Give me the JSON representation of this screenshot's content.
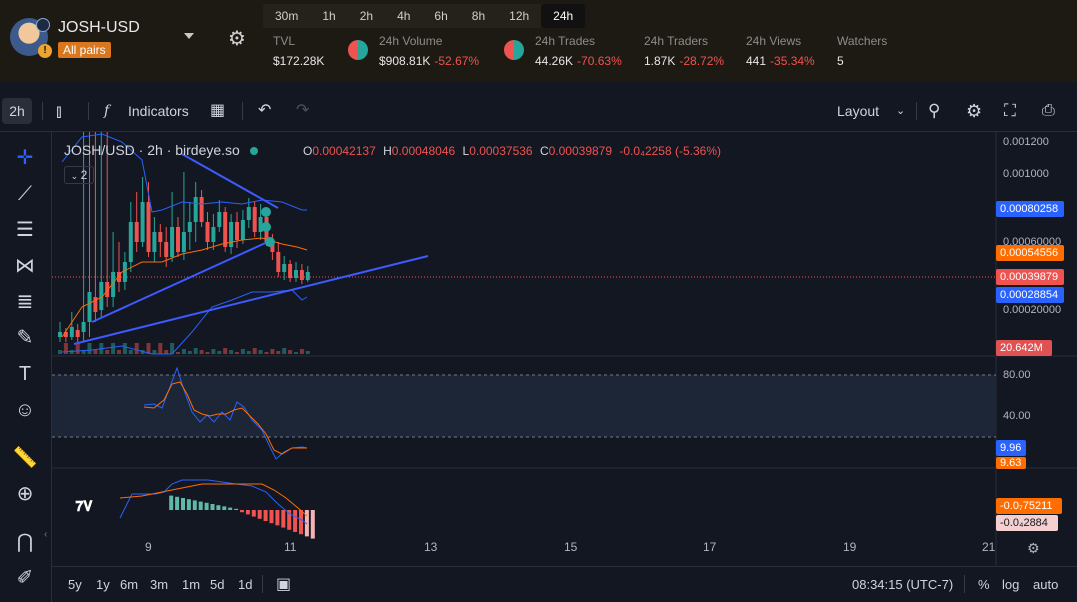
{
  "header": {
    "pair_name": "JOSH-USD",
    "pair_badge": "All pairs",
    "timeframes": [
      "30m",
      "1h",
      "2h",
      "4h",
      "6h",
      "8h",
      "12h",
      "24h"
    ],
    "active_timeframe": "24h",
    "stats": {
      "tvl": {
        "label": "TVL",
        "value": "$172.28K"
      },
      "volume": {
        "label": "24h Volume",
        "value": "$908.81K",
        "change": "-52.67%"
      },
      "trades": {
        "label": "24h Trades",
        "value": "44.26K",
        "change": "-70.63%"
      },
      "traders": {
        "label": "24h Traders",
        "value": "1.87K",
        "change": "-28.72%"
      },
      "views": {
        "label": "24h Views",
        "value": "441",
        "change": "-35.34%"
      },
      "watchers": {
        "label": "Watchers",
        "value": "5"
      }
    }
  },
  "toolbar": {
    "interval": "2h",
    "indicators_label": "Indicators",
    "layout_label": "Layout"
  },
  "chart": {
    "symbol_line": "JOSH/USD · 2h · birdeye.so",
    "ohlc": {
      "o_label": "O",
      "o": "0.00042137",
      "h_label": "H",
      "h": "0.00048046",
      "l_label": "L",
      "l": "0.00037536",
      "c_label": "C",
      "c": "0.00039879",
      "change": "-0.0₄2258 (-5.36%)"
    },
    "indicator_count": "2",
    "price_axis": [
      "0.001200",
      "0.001000",
      "0.00060000",
      "0.00020000"
    ],
    "price_tags": {
      "upper_band": "0.00080258",
      "ma": "0.00054556",
      "last": "0.00039879",
      "lower_band": "0.00028854",
      "volume": "20.642M"
    },
    "rsi_axis": [
      "80.00",
      "40.00"
    ],
    "rsi_tags": {
      "rsi": "9.96",
      "signal": "9.63"
    },
    "macd_tags": {
      "macd": "-0.0₇75211",
      "signal": "-0.0₄2884"
    },
    "x_axis": [
      "9",
      "11",
      "13",
      "15",
      "17",
      "19",
      "21"
    ],
    "colors": {
      "up": "#26a69a",
      "down": "#ef5350",
      "band": "#2962ff",
      "ma": "#ff6d00",
      "trend": "#3d5afe"
    }
  },
  "bottom": {
    "ranges": [
      "5y",
      "1y",
      "6m",
      "3m",
      "1m",
      "5d",
      "1d"
    ],
    "clock": "08:34:15 (UTC-7)",
    "percent_label": "%",
    "log_label": "log",
    "auto_label": "auto"
  }
}
